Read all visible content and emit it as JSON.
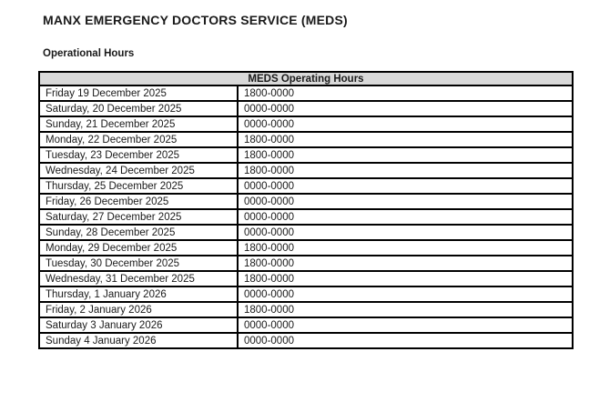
{
  "page": {
    "title": "MANX EMERGENCY DOCTORS SERVICE (MEDS)",
    "subtitle": "Operational Hours"
  },
  "colors": {
    "header_bg": "#d9d9d9",
    "table_border": "#000000",
    "text": "#1a1a1a",
    "page_bg": "#ffffff"
  },
  "table": {
    "header": "MEDS Operating Hours",
    "columns": [
      "date",
      "hours"
    ],
    "rows": [
      {
        "date": "Friday 19 December 2025",
        "hours": "1800-0000"
      },
      {
        "date": "Saturday, 20 December 2025",
        "hours": "0000-0000"
      },
      {
        "date": "Sunday, 21 December 2025",
        "hours": "0000-0000"
      },
      {
        "date": "Monday, 22 December 2025",
        "hours": "1800-0000"
      },
      {
        "date": "Tuesday, 23 December 2025",
        "hours": "1800-0000"
      },
      {
        "date": "Wednesday, 24 December 2025",
        "hours": "1800-0000"
      },
      {
        "date": "Thursday, 25 December 2025",
        "hours": "0000-0000"
      },
      {
        "date": "Friday, 26 December 2025",
        "hours": "0000-0000"
      },
      {
        "date": "Saturday, 27 December 2025",
        "hours": "0000-0000"
      },
      {
        "date": "Sunday, 28 December 2025",
        "hours": "0000-0000"
      },
      {
        "date": "Monday, 29 December 2025",
        "hours": "1800-0000"
      },
      {
        "date": "Tuesday, 30 December 2025",
        "hours": "1800-0000"
      },
      {
        "date": "Wednesday, 31 December 2025",
        "hours": "1800-0000"
      },
      {
        "date": "Thursday, 1 January 2026",
        "hours": "0000-0000"
      },
      {
        "date": "Friday, 2 January 2026",
        "hours": "1800-0000"
      },
      {
        "date": "Saturday 3 January 2026",
        "hours": "0000-0000"
      },
      {
        "date": "Sunday 4 January 2026",
        "hours": "0000-0000"
      }
    ]
  }
}
